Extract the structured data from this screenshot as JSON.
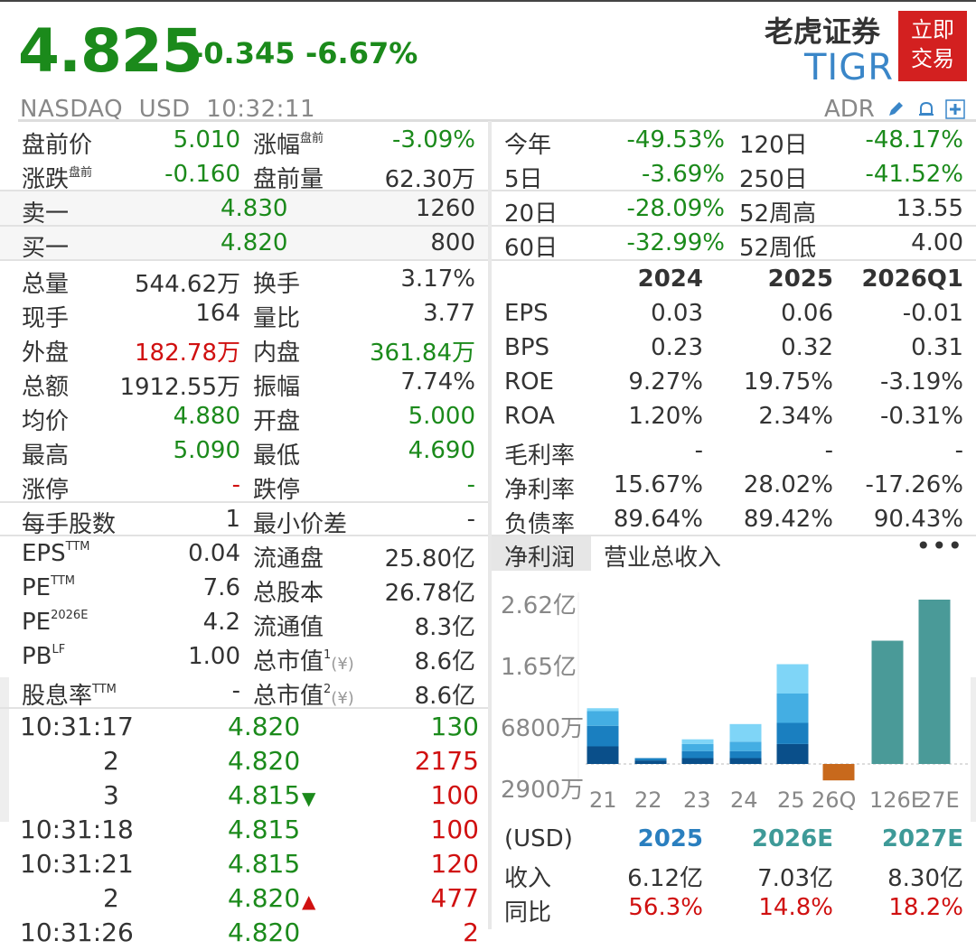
{
  "header": {
    "price": "4.825",
    "change": "-0.345",
    "change_pct": "-6.67%",
    "broker": "老虎证券",
    "ticker": "TIGR",
    "trade_button": "立即\n交易",
    "exchange_line": "NASDAQ  USD  10:32:11",
    "adr": "ADR",
    "icons": [
      "edit-icon",
      "bell-icon",
      "plus-icon"
    ]
  },
  "left": {
    "premarket": [
      {
        "l1": "盘前价",
        "v1": "5.010",
        "l2": "涨幅",
        "l2sup": "盘前",
        "v2": "-3.09%"
      },
      {
        "l1": "涨跌",
        "l1sup": "盘前",
        "v1": "-0.160",
        "l2": "盘前量",
        "v2": "62.30万"
      }
    ],
    "sell1": {
      "label": "卖一",
      "price": "4.830",
      "vol": "1260"
    },
    "buy1": {
      "label": "买一",
      "price": "4.820",
      "vol": "800"
    },
    "stats": [
      {
        "l1": "总量",
        "v1": "544.62万",
        "l2": "换手",
        "v2": "3.17%"
      },
      {
        "l1": "现手",
        "v1": "164",
        "l2": "量比",
        "v2": "3.77"
      },
      {
        "l1": "外盘",
        "v1": "182.78万",
        "l2": "内盘",
        "v2": "361.84万"
      },
      {
        "l1": "总额",
        "v1": "1912.55万",
        "l2": "振幅",
        "v2": "7.74%"
      },
      {
        "l1": "均价",
        "v1": "4.880",
        "l2": "开盘",
        "v2": "5.000"
      },
      {
        "l1": "最高",
        "v1": "5.090",
        "l2": "最低",
        "v2": "4.690"
      },
      {
        "l1": "涨停",
        "v1": "-",
        "l2": "跌停",
        "v2": "-"
      },
      {
        "l1": "每手股数",
        "v1": "1",
        "l2": "最小价差",
        "v2": "-"
      }
    ],
    "valuation": [
      {
        "l1": "EPS",
        "l1sup": "TTM",
        "v1": "0.04",
        "l2": "流通盘",
        "v2": "25.80亿"
      },
      {
        "l1": "PE",
        "l1sup": "TTM",
        "v1": "7.6",
        "l2": "总股本",
        "v2": "26.78亿"
      },
      {
        "l1": "PE",
        "l1sup": "2026E",
        "v1": "4.2",
        "l2": "流通值",
        "v2": "8.3亿"
      },
      {
        "l1": "PB",
        "l1sup": "LF",
        "v1": "1.00",
        "l2": "总市值",
        "l2sup": "1",
        "l2icon": "(¥)",
        "v2": "8.6亿"
      },
      {
        "l1": "股息率",
        "l1sup": "TTM",
        "v1": "-",
        "l2": "总市值",
        "l2sup": "2",
        "l2icon": "(¥)",
        "v2": "8.6亿"
      }
    ],
    "ticks": [
      {
        "time": "10:31:17",
        "price": "4.820",
        "arrow": "",
        "vol": "130",
        "vol_color": "green"
      },
      {
        "time": "2",
        "price": "4.820",
        "arrow": "",
        "vol": "2175",
        "vol_color": "red"
      },
      {
        "time": "3",
        "price": "4.815",
        "arrow": "down",
        "vol": "100",
        "vol_color": "red"
      },
      {
        "time": "10:31:18",
        "price": "4.815",
        "arrow": "",
        "vol": "100",
        "vol_color": "red"
      },
      {
        "time": "10:31:21",
        "price": "4.815",
        "arrow": "",
        "vol": "120",
        "vol_color": "red"
      },
      {
        "time": "2",
        "price": "4.820",
        "arrow": "up",
        "vol": "477",
        "vol_color": "red"
      },
      {
        "time": "10:31:26",
        "price": "4.820",
        "arrow": "",
        "vol": "2",
        "vol_color": "red"
      }
    ]
  },
  "right": {
    "perf": [
      {
        "l1": "今年",
        "v1": "-49.53%",
        "l2": "120日",
        "v2": "-48.17%"
      },
      {
        "l1": "5日",
        "v1": "-3.69%",
        "l2": "250日",
        "v2": "-41.52%"
      },
      {
        "l1": "20日",
        "v1": "-28.09%",
        "l2": "52周高",
        "v2": "13.55"
      },
      {
        "l1": "60日",
        "v1": "-32.99%",
        "l2": "52周低",
        "v2": "4.00"
      }
    ],
    "fin_headers": [
      "2024",
      "2025",
      "2026Q1"
    ],
    "fin_rows": [
      {
        "label": "EPS",
        "c1": "0.03",
        "c2": "0.06",
        "c3": "-0.01"
      },
      {
        "label": "BPS",
        "c1": "0.23",
        "c2": "0.32",
        "c3": "0.31"
      },
      {
        "label": "ROE",
        "c1": "9.27%",
        "c2": "19.75%",
        "c3": "-3.19%"
      },
      {
        "label": "ROA",
        "c1": "1.20%",
        "c2": "2.34%",
        "c3": "-0.31%"
      },
      {
        "label": "毛利率",
        "c1": "-",
        "c2": "-",
        "c3": "-"
      },
      {
        "label": "净利率",
        "c1": "15.67%",
        "c2": "28.02%",
        "c3": "-17.26%"
      },
      {
        "label": "负债率",
        "c1": "89.64%",
        "c2": "89.42%",
        "c3": "90.43%"
      }
    ],
    "tabs": {
      "active": "净利润",
      "other": "营业总收入",
      "more": "•••"
    },
    "forecast": {
      "unit": "(USD)",
      "years": [
        "2025",
        "2026E",
        "2027E"
      ],
      "rows": [
        {
          "label": "收入",
          "values": [
            "6.12亿",
            "7.03亿",
            "8.30亿"
          ]
        },
        {
          "label": "同比",
          "values": [
            "56.3%",
            "14.8%",
            "18.2%"
          ]
        }
      ]
    }
  },
  "chart_data": {
    "type": "bar",
    "title": "",
    "ytick_labels": [
      "2.62亿",
      "1.65亿",
      "6800万",
      "2900万"
    ],
    "categories": [
      "21",
      "22",
      "23",
      "24",
      "25",
      "26Q1",
      "26E",
      "27E"
    ],
    "stacked_quarters": [
      [
        0.3,
        0.35,
        0.25,
        0.05
      ],
      [
        0.06,
        0.04,
        0.0,
        0.0
      ],
      [
        0.1,
        0.12,
        0.12,
        0.08
      ],
      [
        0.1,
        0.12,
        0.16,
        0.3
      ],
      [
        0.34,
        0.36,
        0.5,
        0.5
      ],
      [
        -0.28
      ],
      [
        2.1
      ],
      [
        2.8
      ]
    ],
    "colors": {
      "q1": "#0a4f8a",
      "q2": "#1a7fc0",
      "q3": "#44aee3",
      "q4": "#7fd5f7",
      "negative": "#c8691c",
      "estimate": "#4a9a98"
    }
  }
}
